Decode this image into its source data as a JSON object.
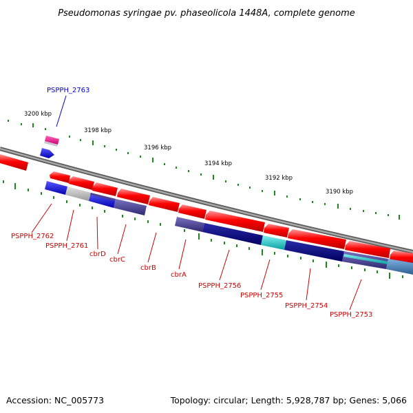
{
  "title": "Pseudomonas syringae pv. phaseolicola 1448A, complete genome",
  "footer": {
    "accession": "Accession: NC_005773",
    "summary": "Topology: circular; Length: 5,928,787 bp; Genes: 5,066"
  },
  "scale_labels": [
    "3200 kbp",
    "3198 kbp",
    "3196 kbp",
    "3194 kbp",
    "3192 kbp",
    "3190 kbp"
  ],
  "gene_labels": [
    {
      "text": "PSPPH_2763",
      "color": "#0000cc"
    },
    {
      "text": "PSPPH_2762",
      "color": "#cc0000"
    },
    {
      "text": "PSPPH_2761",
      "color": "#cc0000"
    },
    {
      "text": "cbrD",
      "color": "#cc0000"
    },
    {
      "text": "cbrC",
      "color": "#cc0000"
    },
    {
      "text": "cbrB",
      "color": "#cc0000"
    },
    {
      "text": "cbrA",
      "color": "#cc0000"
    },
    {
      "text": "PSPPH_2756",
      "color": "#cc0000"
    },
    {
      "text": "PSPPH_2755",
      "color": "#cc0000"
    },
    {
      "text": "PSPPH_2754",
      "color": "#cc0000"
    },
    {
      "text": "PSPPH_2753",
      "color": "#cc0000"
    }
  ],
  "colors": {
    "gene_red": "#ff0000",
    "gene_blue": "#0000ff",
    "gene_pink": "#ee1188",
    "backbone": "#808080",
    "tick_green": "#1a8a1a",
    "navy": "#000080",
    "slate": "#4c4490",
    "cyan": "#19c8c8",
    "silver": "#b4b4b4",
    "steel": "#4682b4"
  }
}
